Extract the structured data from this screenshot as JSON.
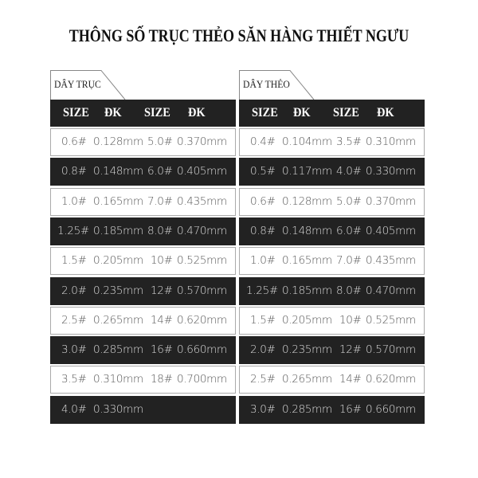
{
  "title": "THÔNG SỐ TRỤC THẺO SĂN HÀNG THIẾT NGƯU",
  "tables": [
    {
      "label": "DÂY TRỤC",
      "headers": [
        "SIZE",
        "ĐK",
        "SIZE",
        "ĐK"
      ],
      "rows": [
        [
          "0.6#",
          "0.128mm",
          "5.0#",
          "0.370mm"
        ],
        [
          "0.8#",
          "0.148mm",
          "6.0#",
          "0.405mm"
        ],
        [
          "1.0#",
          "0.165mm",
          "7.0#",
          "0.435mm"
        ],
        [
          "1.25#",
          "0.185mm",
          "8.0#",
          "0.470mm"
        ],
        [
          "1.5#",
          "0.205mm",
          "10#",
          "0.525mm"
        ],
        [
          "2.0#",
          "0.235mm",
          "12#",
          "0.570mm"
        ],
        [
          "2.5#",
          "0.265mm",
          "14#",
          "0.620mm"
        ],
        [
          "3.0#",
          "0.285mm",
          "16#",
          "0.660mm"
        ],
        [
          "3.5#",
          "0.310mm",
          "18#",
          "0.700mm"
        ],
        [
          "4.0#",
          "0.330mm",
          "",
          ""
        ]
      ]
    },
    {
      "label": "DÂY THẺO",
      "headers": [
        "SIZE",
        "ĐK",
        "SIZE",
        "ĐK"
      ],
      "rows": [
        [
          "0.4#",
          "0.104mm",
          "3.5#",
          "0.310mm"
        ],
        [
          "0.5#",
          "0.117mm",
          "4.0#",
          "0.330mm"
        ],
        [
          "0.6#",
          "0.128mm",
          "5.0#",
          "0.370mm"
        ],
        [
          "0.8#",
          "0.148mm",
          "6.0#",
          "0.405mm"
        ],
        [
          "1.0#",
          "0.165mm",
          "7.0#",
          "0.435mm"
        ],
        [
          "1.25#",
          "0.185mm",
          "8.0#",
          "0.470mm"
        ],
        [
          "1.5#",
          "0.205mm",
          "10#",
          "0.525mm"
        ],
        [
          "2.0#",
          "0.235mm",
          "12#",
          "0.570mm"
        ],
        [
          "2.5#",
          "0.265mm",
          "14#",
          "0.620mm"
        ],
        [
          "3.0#",
          "0.285mm",
          "16#",
          "0.660mm"
        ]
      ]
    }
  ],
  "colors": {
    "dark_row": "#222222",
    "light_row": "#ffffff",
    "border": "#aaaaaa"
  }
}
